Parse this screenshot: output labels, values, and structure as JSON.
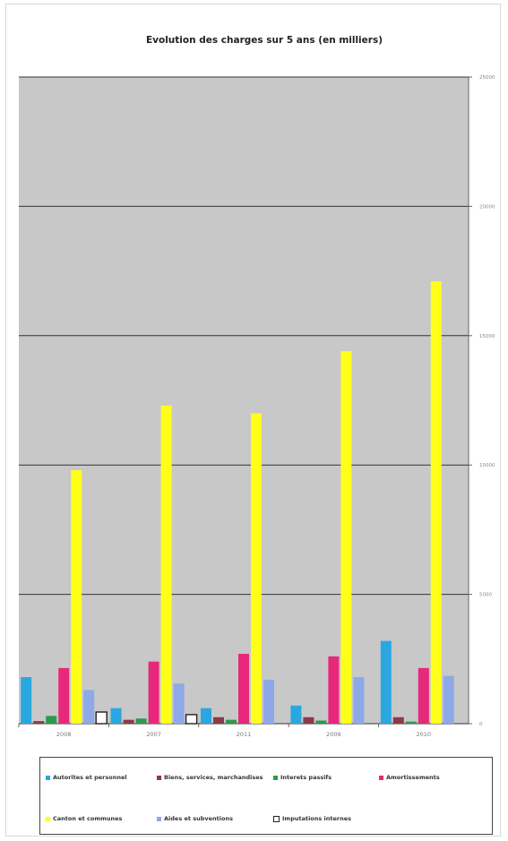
{
  "chart_data": {
    "type": "bar",
    "title": "Evolution des charges sur 5 ans (en milliers)",
    "categories": [
      "2008",
      "2007",
      "2011",
      "2009",
      "2010"
    ],
    "ylim": [
      0,
      25000
    ],
    "yticks": [
      0,
      5000,
      10000,
      15000,
      20000,
      25000
    ],
    "ytick_labels": [
      "0",
      "5000",
      "10000",
      "15000",
      "20000",
      "25000"
    ],
    "grid": true,
    "legend_position": "bottom",
    "series": [
      {
        "name": "Autorites et personnel",
        "color": "#2aa7e0",
        "values": [
          1800,
          600,
          600,
          700,
          3200
        ]
      },
      {
        "name": "Biens, services, marchandises",
        "color": "#8a3a4a",
        "values": [
          100,
          150,
          250,
          250,
          250
        ]
      },
      {
        "name": "Interets passifs",
        "color": "#2f9a4a",
        "values": [
          300,
          200,
          150,
          120,
          80
        ]
      },
      {
        "name": "Amortissements",
        "color": "#e8287a",
        "values": [
          2150,
          2400,
          2700,
          2600,
          2150
        ]
      },
      {
        "name": "Canton et communes",
        "color": "#ffff1a",
        "values": [
          9800,
          12300,
          12000,
          14400,
          17100
        ]
      },
      {
        "name": "Aides et subventions",
        "color": "#8ea9e8",
        "values": [
          1300,
          1550,
          1700,
          1800,
          1850
        ]
      },
      {
        "name": "Imputations internes",
        "color": "#ffffff",
        "values": [
          450,
          350,
          0,
          0,
          0
        ]
      }
    ]
  }
}
